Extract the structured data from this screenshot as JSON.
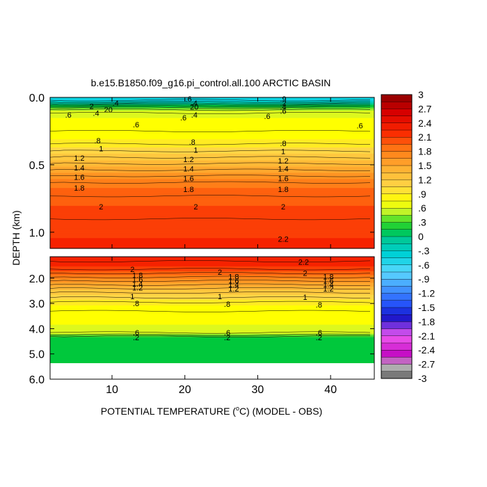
{
  "chart_data": {
    "type": "heatmap",
    "title": "b.e15.B1850.f09_g16.pi_control.all.100 ARCTIC BASIN",
    "xlabel_pre": "POTENTIAL TEMPERATURE (",
    "xlabel_deg": "o",
    "xlabel_post": "C) (MODEL - OBS)",
    "ylabel": "DEPTH (km)",
    "x_range": [
      1.5,
      46
    ],
    "x_ticks": [
      "10",
      "20",
      "30",
      "40"
    ],
    "x_tick_values": [
      10,
      20,
      30,
      40
    ],
    "upper_panel": {
      "depth_range": [
        0.0,
        1.12
      ],
      "tick_labels": [
        "0.0",
        "0.5",
        "1.0"
      ],
      "tick_values": [
        0.0,
        0.5,
        1.0
      ]
    },
    "lower_panel": {
      "depth_range": [
        1.15,
        6.0
      ],
      "tick_labels": [
        "2.0",
        "3.0",
        "4.0",
        "5.0",
        "6.0"
      ],
      "tick_values": [
        2.0,
        3.0,
        4.0,
        5.0,
        6.0
      ]
    },
    "colorbar": {
      "range": [
        -3,
        3
      ],
      "step": 0.15,
      "labels": [
        "3",
        "2.7",
        "2.4",
        "2.1",
        "1.8",
        "1.5",
        "1.2",
        ".9",
        ".6",
        ".3",
        "0",
        "-.3",
        "-.6",
        "-.9",
        "-1.2",
        "-1.5",
        "-1.8",
        "-2.1",
        "-2.4",
        "-2.7",
        "-3"
      ],
      "label_values": [
        3,
        2.7,
        2.4,
        2.1,
        1.8,
        1.5,
        1.2,
        0.9,
        0.6,
        0.3,
        0,
        -0.3,
        -0.6,
        -0.9,
        -1.2,
        -1.5,
        -1.8,
        -2.1,
        -2.4,
        -2.7,
        -3
      ]
    },
    "profile_upper": [
      {
        "depth": 0.0,
        "value": -0.5
      },
      {
        "depth": 0.02,
        "value": -0.45
      },
      {
        "depth": 0.04,
        "value": -0.2
      },
      {
        "depth": 0.06,
        "value": 0.1
      },
      {
        "depth": 0.08,
        "value": 0.35
      },
      {
        "depth": 0.1,
        "value": 0.55
      },
      {
        "depth": 0.13,
        "value": 0.65
      },
      {
        "depth": 0.18,
        "value": 0.7
      },
      {
        "depth": 0.22,
        "value": 0.72
      },
      {
        "depth": 0.28,
        "value": 0.78
      },
      {
        "depth": 0.33,
        "value": 0.86
      },
      {
        "depth": 0.38,
        "value": 1.0
      },
      {
        "depth": 0.45,
        "value": 1.22
      },
      {
        "depth": 0.5,
        "value": 1.38
      },
      {
        "depth": 0.56,
        "value": 1.58
      },
      {
        "depth": 0.63,
        "value": 1.8
      },
      {
        "depth": 0.7,
        "value": 1.92
      },
      {
        "depth": 0.8,
        "value": 2.02
      },
      {
        "depth": 0.9,
        "value": 2.1
      },
      {
        "depth": 1.0,
        "value": 2.15
      },
      {
        "depth": 1.12,
        "value": 2.22
      }
    ],
    "profile_lower": [
      {
        "depth": 1.15,
        "value": 2.3
      },
      {
        "depth": 1.5,
        "value": 2.2
      },
      {
        "depth": 1.7,
        "value": 2.05
      },
      {
        "depth": 1.9,
        "value": 1.85
      },
      {
        "depth": 2.1,
        "value": 1.65
      },
      {
        "depth": 2.3,
        "value": 1.45
      },
      {
        "depth": 2.5,
        "value": 1.25
      },
      {
        "depth": 2.7,
        "value": 1.1
      },
      {
        "depth": 2.85,
        "value": 0.98
      },
      {
        "depth": 3.0,
        "value": 0.85
      },
      {
        "depth": 3.3,
        "value": 0.75
      },
      {
        "depth": 3.8,
        "value": 0.68
      },
      {
        "depth": 4.1,
        "value": 0.65
      },
      {
        "depth": 4.2,
        "value": 0.55
      },
      {
        "depth": 4.28,
        "value": 0.35
      },
      {
        "depth": 4.35,
        "value": 0.22
      },
      {
        "depth": 5.35,
        "value": 0.2
      }
    ],
    "contour_labels": [
      {
        "text": ".6",
        "x": 20.5,
        "depth": 0.01
      },
      {
        "text": ".9",
        "x": 33.5,
        "depth": 0.01
      },
      {
        "text": ".4",
        "x": 10.5,
        "depth": 0.04
      },
      {
        "text": "2",
        "x": 7.2,
        "depth": 0.065
      },
      {
        "text": ".4",
        "x": 21.3,
        "depth": 0.04
      },
      {
        "text": ".2",
        "x": 33.5,
        "depth": 0.04
      },
      {
        "text": "20",
        "x": 21.3,
        "depth": 0.07
      },
      {
        "text": ".4",
        "x": 33.5,
        "depth": 0.07
      },
      {
        "text": "20",
        "x": 9.5,
        "depth": 0.09
      },
      {
        "text": ".4",
        "x": 7.8,
        "depth": 0.115
      },
      {
        "text": ".4",
        "x": 21.3,
        "depth": 0.13
      },
      {
        "text": ".6",
        "x": 33.5,
        "depth": 0.1
      },
      {
        "text": ".6",
        "x": 4.0,
        "depth": 0.13
      },
      {
        "text": ".6",
        "x": 19.8,
        "depth": 0.15
      },
      {
        "text": ".6",
        "x": 31.3,
        "depth": 0.14
      },
      {
        "text": ".6",
        "x": 13.3,
        "depth": 0.2
      },
      {
        "text": ".6",
        "x": 44.0,
        "depth": 0.21
      },
      {
        "text": ".8",
        "x": 8.0,
        "depth": 0.32
      },
      {
        "text": ".8",
        "x": 21.0,
        "depth": 0.33
      },
      {
        "text": ".8",
        "x": 33.5,
        "depth": 0.34
      },
      {
        "text": "1",
        "x": 8.5,
        "depth": 0.38
      },
      {
        "text": "1",
        "x": 21.5,
        "depth": 0.39
      },
      {
        "text": "1",
        "x": 33.5,
        "depth": 0.4
      },
      {
        "text": "1.2",
        "x": 5.5,
        "depth": 0.45
      },
      {
        "text": "1.2",
        "x": 20.5,
        "depth": 0.46
      },
      {
        "text": "1.2",
        "x": 33.5,
        "depth": 0.47
      },
      {
        "text": "1.4",
        "x": 5.5,
        "depth": 0.52
      },
      {
        "text": "1.4",
        "x": 20.5,
        "depth": 0.53
      },
      {
        "text": "1.4",
        "x": 33.5,
        "depth": 0.53
      },
      {
        "text": "1.6",
        "x": 5.5,
        "depth": 0.59
      },
      {
        "text": "1.6",
        "x": 20.5,
        "depth": 0.6
      },
      {
        "text": "1.6",
        "x": 33.5,
        "depth": 0.6
      },
      {
        "text": "1.8",
        "x": 5.5,
        "depth": 0.67
      },
      {
        "text": "1.8",
        "x": 20.5,
        "depth": 0.68
      },
      {
        "text": "1.8",
        "x": 33.5,
        "depth": 0.68
      },
      {
        "text": "2",
        "x": 8.5,
        "depth": 0.81
      },
      {
        "text": "2",
        "x": 21.5,
        "depth": 0.81
      },
      {
        "text": "2",
        "x": 33.5,
        "depth": 0.81
      },
      {
        "text": "2.2",
        "x": 33.5,
        "depth": 1.05
      },
      {
        "text": "2.2",
        "x": 36.3,
        "depth": 1.35
      },
      {
        "text": "2",
        "x": 12.8,
        "depth": 1.65
      },
      {
        "text": "2",
        "x": 24.8,
        "depth": 1.75
      },
      {
        "text": "2",
        "x": 36.5,
        "depth": 1.8
      },
      {
        "text": "1.8",
        "x": 13.5,
        "depth": 1.88
      },
      {
        "text": "1.8",
        "x": 26.7,
        "depth": 1.93
      },
      {
        "text": "1.8",
        "x": 39.7,
        "depth": 1.93
      },
      {
        "text": "1.6",
        "x": 13.5,
        "depth": 2.05
      },
      {
        "text": "1.6",
        "x": 26.7,
        "depth": 2.1
      },
      {
        "text": "1.6",
        "x": 39.7,
        "depth": 2.1
      },
      {
        "text": "1.4",
        "x": 13.5,
        "depth": 2.22
      },
      {
        "text": "1.4",
        "x": 26.7,
        "depth": 2.25
      },
      {
        "text": "1.4",
        "x": 39.7,
        "depth": 2.25
      },
      {
        "text": "1.2",
        "x": 13.5,
        "depth": 2.38
      },
      {
        "text": "1.2",
        "x": 26.7,
        "depth": 2.42
      },
      {
        "text": "1.2",
        "x": 39.7,
        "depth": 2.42
      },
      {
        "text": "1",
        "x": 12.8,
        "depth": 2.72
      },
      {
        "text": "1",
        "x": 24.8,
        "depth": 2.72
      },
      {
        "text": "1",
        "x": 36.5,
        "depth": 2.75
      },
      {
        "text": ".8",
        "x": 13.3,
        "depth": 3.0
      },
      {
        "text": ".8",
        "x": 25.8,
        "depth": 3.03
      },
      {
        "text": ".8",
        "x": 38.4,
        "depth": 3.05
      },
      {
        "text": ".6",
        "x": 13.3,
        "depth": 4.15
      },
      {
        "text": ".6",
        "x": 25.8,
        "depth": 4.15
      },
      {
        "text": ".6",
        "x": 38.4,
        "depth": 4.15
      },
      {
        "text": ".2",
        "x": 13.3,
        "depth": 4.35
      },
      {
        "text": ".2",
        "x": 25.8,
        "depth": 4.35
      },
      {
        "text": ".2",
        "x": 38.4,
        "depth": 4.35
      }
    ]
  }
}
